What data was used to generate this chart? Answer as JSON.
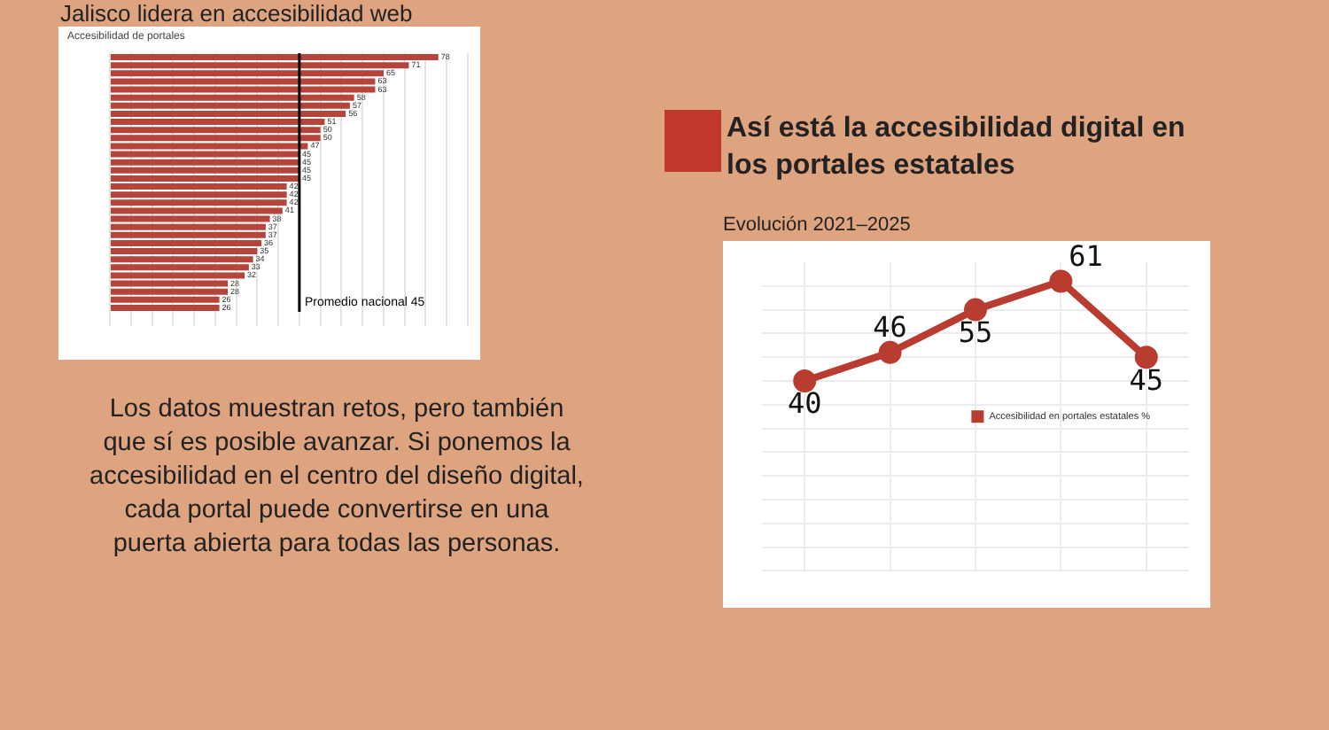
{
  "chart_data": [
    {
      "type": "bar",
      "orientation": "horizontal",
      "title": "Jalisco lidera en accesibilidad web",
      "subtitle": "Accesibilidad de portales",
      "categories": [
        null,
        null,
        null,
        null,
        null,
        null,
        null,
        null,
        null,
        null,
        null,
        null,
        null,
        null,
        null,
        null,
        null,
        null,
        null,
        null,
        null,
        null,
        null,
        null,
        null,
        null,
        null,
        null,
        null,
        null,
        null,
        null
      ],
      "values": [
        78,
        71,
        65,
        63,
        63,
        58,
        57,
        56,
        51,
        50,
        50,
        47,
        45,
        45,
        45,
        45,
        42,
        42,
        42,
        41,
        38,
        37,
        37,
        36,
        35,
        34,
        33,
        32,
        28,
        28,
        26,
        26
      ],
      "color": "#b5443a",
      "xlim": [
        0,
        85
      ],
      "xticks": [
        {
          "value": 0,
          "label": null
        },
        {
          "value": 5,
          "label": null
        },
        {
          "value": 10,
          "label": null
        },
        {
          "value": 15,
          "label": null
        },
        {
          "value": 20,
          "label": null
        },
        {
          "value": 25,
          "label": null
        },
        {
          "value": 30,
          "label": null
        },
        {
          "value": 35,
          "label": null
        },
        {
          "value": 40,
          "label": null
        },
        {
          "value": 45,
          "label": null
        },
        {
          "value": 50,
          "label": null
        },
        {
          "value": 55,
          "label": null
        },
        {
          "value": 60,
          "label": null
        },
        {
          "value": 65,
          "label": null
        },
        {
          "value": 70,
          "label": null
        },
        {
          "value": 75,
          "label": null
        },
        {
          "value": 80,
          "label": null
        },
        {
          "value": 85,
          "label": null
        }
      ],
      "grid": "x",
      "data_labels": true,
      "ref_lines": [
        {
          "axis": "x",
          "value": 45,
          "label": "Promedio nacional 45",
          "color": "#000000"
        }
      ]
    },
    {
      "type": "line",
      "title": "Así está la accesibilidad digital en los portales estatales",
      "subtitle": "Evolución 2021–2025",
      "categories": [
        null,
        null,
        null,
        null,
        null
      ],
      "ylim": [
        0,
        65
      ],
      "yticks": [
        {
          "value": 0,
          "label": null
        },
        {
          "value": 5,
          "label": null
        },
        {
          "value": 10,
          "label": null
        },
        {
          "value": 15,
          "label": null
        },
        {
          "value": 20,
          "label": null
        },
        {
          "value": 25,
          "label": null
        },
        {
          "value": 30,
          "label": null
        },
        {
          "value": 35,
          "label": null
        },
        {
          "value": 40,
          "label": null
        },
        {
          "value": 45,
          "label": null
        },
        {
          "value": 50,
          "label": null
        },
        {
          "value": 55,
          "label": null
        },
        {
          "value": 60,
          "label": null
        }
      ],
      "series": [
        {
          "name": "Accesibilidad en portales estatales %",
          "color": "#b83c30",
          "values": [
            40,
            46,
            55,
            61,
            45
          ]
        }
      ],
      "marker": "circle",
      "legend": "right",
      "grid": true,
      "data_labels": true
    },
    {
      "type": "other",
      "annotations": [
        "Los datos muestran retos, pero también que sí es posible avanzar. Si ponemos la accesibilidad en el centro del diseño digital, cada portal puede convertirse en una puerta abierta para todas las personas."
      ]
    }
  ]
}
